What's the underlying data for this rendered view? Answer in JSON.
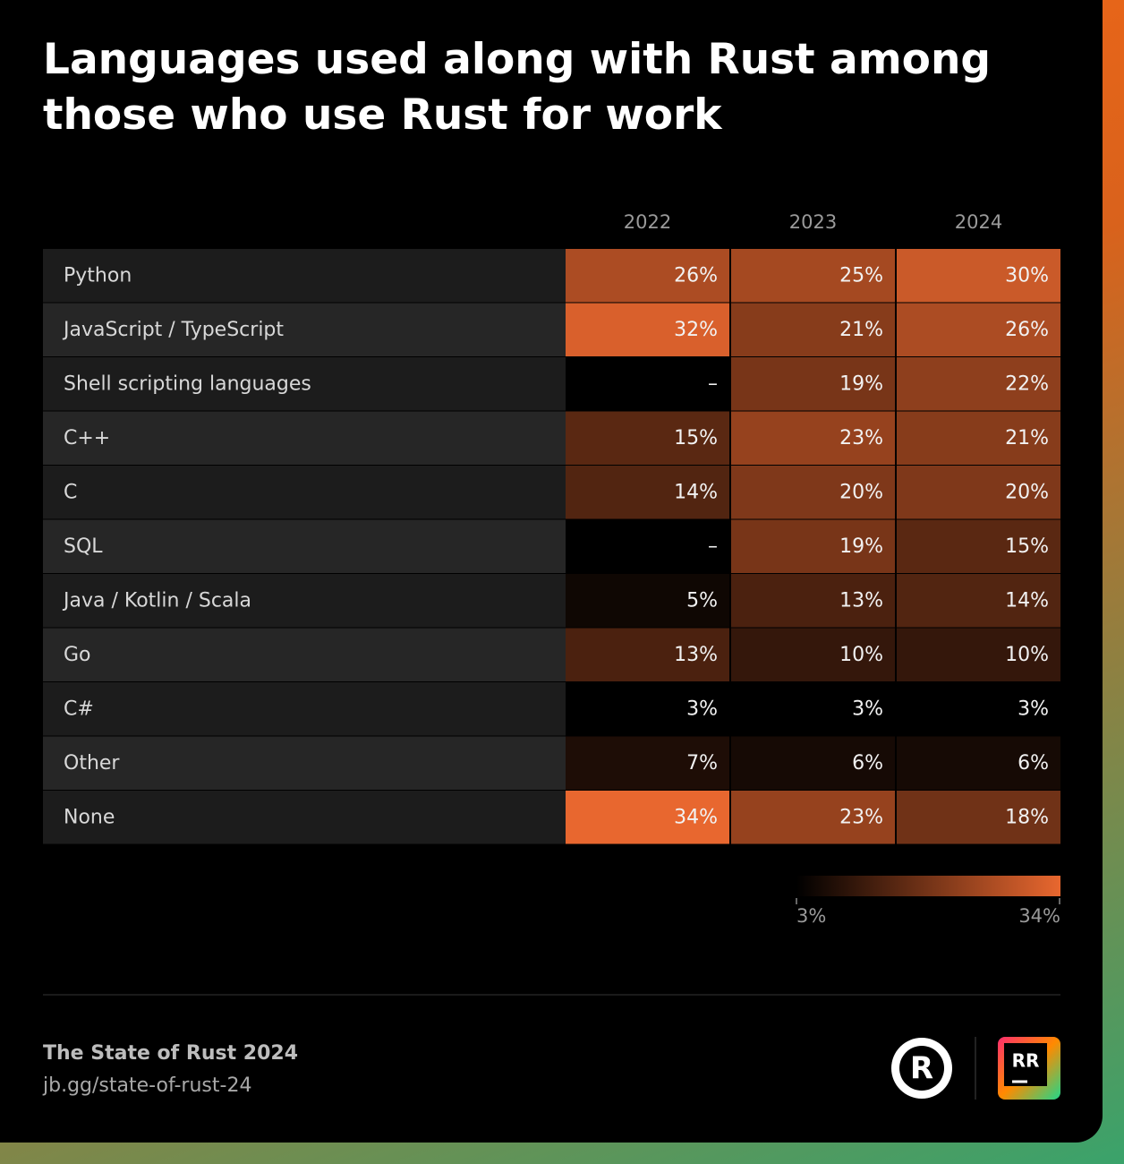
{
  "chart_data": {
    "type": "heatmap",
    "title": "Languages used along with Rust among those who use Rust for work",
    "categories": [
      "2022",
      "2023",
      "2024"
    ],
    "rows": [
      "Python",
      "JavaScript / TypeScript",
      "Shell scripting languages",
      "C++",
      "C",
      "SQL",
      "Java / Kotlin / Scala",
      "Go",
      "C#",
      "Other",
      "None"
    ],
    "values": [
      [
        26,
        25,
        30
      ],
      [
        32,
        21,
        26
      ],
      [
        null,
        19,
        22
      ],
      [
        15,
        23,
        21
      ],
      [
        14,
        20,
        20
      ],
      [
        null,
        19,
        15
      ],
      [
        5,
        13,
        14
      ],
      [
        13,
        10,
        10
      ],
      [
        3,
        3,
        3
      ],
      [
        7,
        6,
        6
      ],
      [
        34,
        23,
        18
      ]
    ],
    "value_labels": [
      [
        "26%",
        "25%",
        "30%"
      ],
      [
        "32%",
        "21%",
        "26%"
      ],
      [
        "–",
        "19%",
        "22%"
      ],
      [
        "15%",
        "23%",
        "21%"
      ],
      [
        "14%",
        "20%",
        "20%"
      ],
      [
        "–",
        "19%",
        "15%"
      ],
      [
        "5%",
        "13%",
        "14%"
      ],
      [
        "13%",
        "10%",
        "10%"
      ],
      [
        "3%",
        "3%",
        "3%"
      ],
      [
        "7%",
        "6%",
        "6%"
      ],
      [
        "34%",
        "23%",
        "18%"
      ]
    ],
    "colorscale": {
      "range": [
        {
          "value": 3,
          "label": "3%"
        },
        {
          "value": 34,
          "label": "34%"
        }
      ],
      "colors": [
        "#000000",
        "#e8672f"
      ]
    }
  },
  "footer": {
    "source": "The State of Rust 2024",
    "link": "jb.gg/state-of-rust-24",
    "rust_logo": "R",
    "product_logo": "RR"
  }
}
